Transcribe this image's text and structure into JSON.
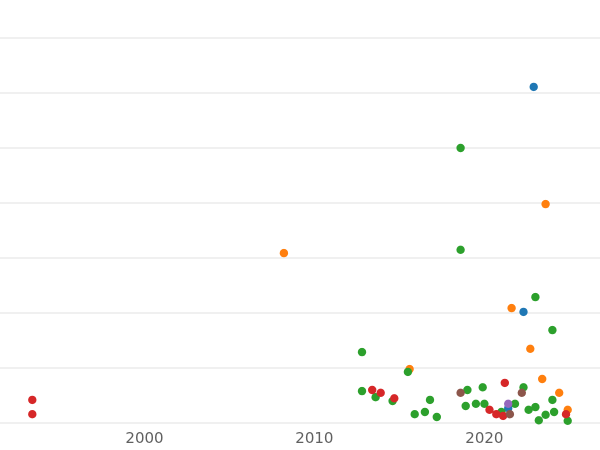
{
  "chart_data": {
    "type": "scatter",
    "title": "",
    "xlabel": "",
    "ylabel": "",
    "background_color": "#ffffff",
    "grid_color": "#e2e2e2",
    "tick_color": "#606060",
    "grid_on": true,
    "legend_position": "none",
    "marker_radius": 4.2,
    "tick_label_y": 443,
    "xlim": [
      1991.5,
      2026.8
    ],
    "ylim": [
      -0.49,
      7.69
    ],
    "gridlines_y": [
      0,
      1,
      2,
      3,
      4,
      5,
      6,
      7
    ],
    "x_ticks": [
      {
        "label": "2000",
        "value": 2000
      },
      {
        "label": "2010",
        "value": 2010
      },
      {
        "label": "2020",
        "value": 2020
      }
    ],
    "series": [
      {
        "name": "blue",
        "color": "#1f77b4",
        "points": [
          [
            2022.9,
            6.11
          ],
          [
            2022.3,
            2.02
          ],
          [
            2021.4,
            0.27
          ]
        ]
      },
      {
        "name": "orange",
        "color": "#ff7f0e",
        "points": [
          [
            2008.2,
            3.09
          ],
          [
            2023.6,
            3.98
          ],
          [
            2021.6,
            2.09
          ],
          [
            2022.7,
            1.35
          ],
          [
            2015.6,
            0.98
          ],
          [
            2023.4,
            0.8
          ],
          [
            2024.4,
            0.55
          ],
          [
            2024.9,
            0.24
          ]
        ]
      },
      {
        "name": "green",
        "color": "#2ca02c",
        "points": [
          [
            2018.6,
            5.0
          ],
          [
            2018.6,
            3.15
          ],
          [
            2023.0,
            2.29
          ],
          [
            2024.0,
            1.69
          ],
          [
            2012.8,
            1.29
          ],
          [
            2015.5,
            0.93
          ],
          [
            2012.8,
            0.58
          ],
          [
            2013.6,
            0.47
          ],
          [
            2014.6,
            0.4
          ],
          [
            2015.9,
            0.16
          ],
          [
            2016.5,
            0.2
          ],
          [
            2016.8,
            0.42
          ],
          [
            2017.2,
            0.11
          ],
          [
            2019.0,
            0.6
          ],
          [
            2019.9,
            0.65
          ],
          [
            2018.9,
            0.31
          ],
          [
            2019.5,
            0.35
          ],
          [
            2020.0,
            0.35
          ],
          [
            2021.0,
            0.2
          ],
          [
            2021.8,
            0.35
          ],
          [
            2022.3,
            0.65
          ],
          [
            2022.6,
            0.24
          ],
          [
            2023.0,
            0.29
          ],
          [
            2023.2,
            0.05
          ],
          [
            2023.6,
            0.15
          ],
          [
            2024.0,
            0.42
          ],
          [
            2024.1,
            0.2
          ],
          [
            2024.9,
            0.04
          ]
        ]
      },
      {
        "name": "red",
        "color": "#d62728",
        "points": [
          [
            1993.4,
            0.42
          ],
          [
            1993.4,
            0.16
          ],
          [
            2013.4,
            0.6
          ],
          [
            2013.9,
            0.55
          ],
          [
            2014.7,
            0.45
          ],
          [
            2021.2,
            0.73
          ],
          [
            2020.3,
            0.24
          ],
          [
            2020.7,
            0.16
          ],
          [
            2021.1,
            0.13
          ],
          [
            2024.8,
            0.16
          ]
        ]
      },
      {
        "name": "brown",
        "color": "#8c564b",
        "points": [
          [
            2018.6,
            0.55
          ],
          [
            2022.2,
            0.55
          ],
          [
            2021.5,
            0.16
          ]
        ]
      },
      {
        "name": "purple",
        "color": "#9467bd",
        "points": [
          [
            2021.4,
            0.35
          ]
        ]
      }
    ]
  }
}
